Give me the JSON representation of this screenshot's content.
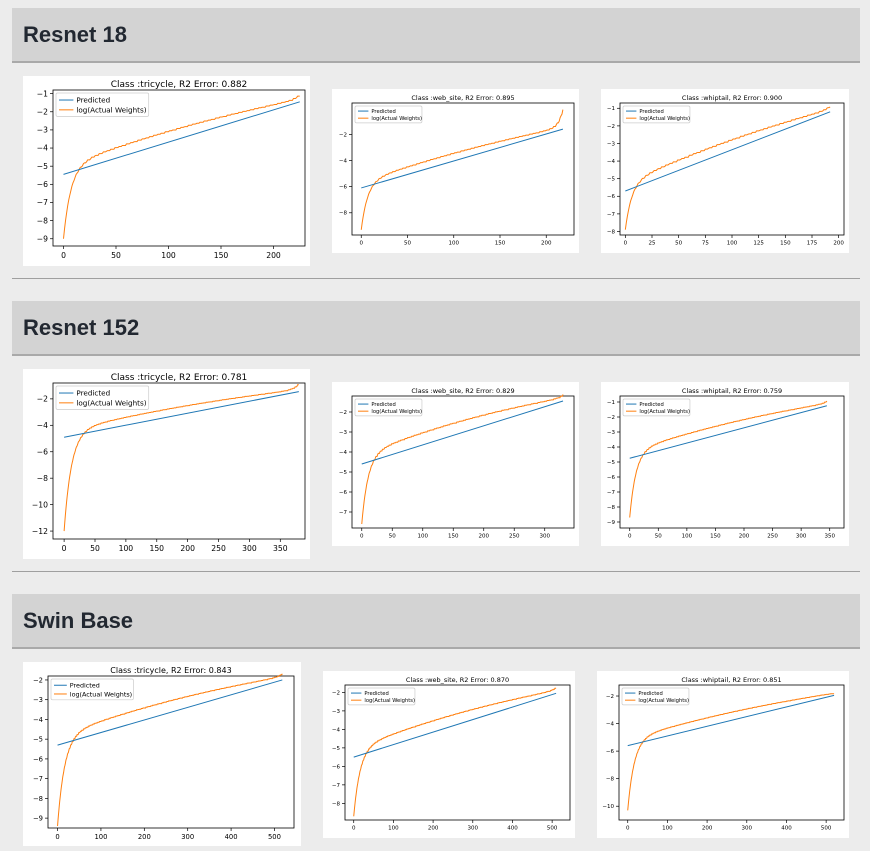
{
  "sections": [
    {
      "title": "Resnet 18"
    },
    {
      "title": "Resnet 152"
    },
    {
      "title": "Swin Base"
    }
  ],
  "colors": {
    "predicted": "#1f77b4",
    "actual": "#ff7f0e",
    "header_bg": "#d3d3d3",
    "page_bg": "#ececec"
  },
  "chart_data": [
    {
      "type": "line",
      "section": "Resnet 18",
      "title": "Class :tricycle, R2 Error: 0.882",
      "xticks": [
        0,
        50,
        100,
        150,
        200
      ],
      "yticks": [
        -1,
        -2,
        -3,
        -4,
        -5,
        -6,
        -7,
        -8,
        -9
      ],
      "xlim": [
        -10,
        230
      ],
      "ylim": [
        -9.4,
        -0.8
      ],
      "legend": "top-left",
      "n": 225,
      "predicted": [
        -5.45,
        -1.45
      ],
      "actual_end": -1.3,
      "actual_start": -9.0,
      "series": [
        {
          "name": "Predicted"
        },
        {
          "name": "log(Actual Weights)"
        }
      ]
    },
    {
      "type": "line",
      "section": "Resnet 18",
      "title": "Class :web_site, R2 Error: 0.895",
      "xticks": [
        0,
        50,
        100,
        150,
        200
      ],
      "yticks": [
        -2,
        -4,
        -6,
        -8
      ],
      "xlim": [
        -10,
        230
      ],
      "ylim": [
        -9.7,
        0.4
      ],
      "legend": "top-left",
      "n": 218,
      "predicted": [
        -6.1,
        -1.6
      ],
      "actual_end": -0.3,
      "actual_start": -9.3,
      "series": [
        {
          "name": "Predicted"
        },
        {
          "name": "log(Actual Weights)"
        }
      ]
    },
    {
      "type": "line",
      "section": "Resnet 18",
      "title": "Class :whiptail, R2 Error: 0.900",
      "xticks": [
        0,
        25,
        50,
        75,
        100,
        125,
        150,
        175,
        200
      ],
      "yticks": [
        -1,
        -2,
        -3,
        -4,
        -5,
        -6,
        -7,
        -8
      ],
      "xlim": [
        -5,
        205
      ],
      "ylim": [
        -8.2,
        -0.7
      ],
      "legend": "top-left",
      "n": 192,
      "predicted": [
        -5.7,
        -1.2
      ],
      "actual_end": -1.1,
      "actual_start": -7.9,
      "series": [
        {
          "name": "Predicted"
        },
        {
          "name": "log(Actual Weights)"
        }
      ]
    },
    {
      "type": "line",
      "section": "Resnet 152",
      "title": "Class :tricycle, R2 Error: 0.781",
      "xticks": [
        0,
        50,
        100,
        150,
        200,
        250,
        300,
        350
      ],
      "yticks": [
        -2,
        -4,
        -6,
        -8,
        -10,
        -12
      ],
      "xlim": [
        -18,
        390
      ],
      "ylim": [
        -12.6,
        -0.8
      ],
      "legend": "top-left",
      "n": 380,
      "predicted": [
        -4.9,
        -1.45
      ],
      "actual_end": -1.1,
      "actual_start": -12.0,
      "series": [
        {
          "name": "Predicted"
        },
        {
          "name": "log(Actual Weights)"
        }
      ]
    },
    {
      "type": "line",
      "section": "Resnet 152",
      "title": "Class :web_site, R2 Error: 0.829",
      "xticks": [
        0,
        50,
        100,
        150,
        200,
        250,
        300
      ],
      "yticks": [
        -2,
        -3,
        -4,
        -5,
        -6,
        -7
      ],
      "xlim": [
        -16,
        348
      ],
      "ylim": [
        -7.8,
        -1.2
      ],
      "legend": "top-left",
      "n": 330,
      "predicted": [
        -4.6,
        -1.45
      ],
      "actual_end": -1.4,
      "actual_start": -7.6,
      "series": [
        {
          "name": "Predicted"
        },
        {
          "name": "log(Actual Weights)"
        }
      ]
    },
    {
      "type": "line",
      "section": "Resnet 152",
      "title": "Class :whiptail, R2 Error: 0.759",
      "xticks": [
        0,
        50,
        100,
        150,
        200,
        250,
        300,
        350
      ],
      "yticks": [
        -1,
        -2,
        -3,
        -4,
        -5,
        -6,
        -7,
        -8,
        -9
      ],
      "xlim": [
        -17,
        375
      ],
      "ylim": [
        -9.4,
        -0.6
      ],
      "legend": "top-left",
      "n": 345,
      "predicted": [
        -4.75,
        -1.25
      ],
      "actual_end": -1.2,
      "actual_start": -8.7,
      "series": [
        {
          "name": "Predicted"
        },
        {
          "name": "log(Actual Weights)"
        }
      ]
    },
    {
      "type": "line",
      "section": "Swin Base",
      "title": "Class :tricycle, R2 Error: 0.843",
      "xticks": [
        0,
        100,
        200,
        300,
        400,
        500
      ],
      "yticks": [
        -2,
        -3,
        -4,
        -5,
        -6,
        -7,
        -8,
        -9
      ],
      "xlim": [
        -22,
        545
      ],
      "ylim": [
        -9.5,
        -1.8
      ],
      "legend": "top-left",
      "n": 518,
      "predicted": [
        -5.3,
        -2.0
      ],
      "actual_end": -1.95,
      "actual_start": -9.4,
      "series": [
        {
          "name": "Predicted"
        },
        {
          "name": "log(Actual Weights)"
        }
      ]
    },
    {
      "type": "line",
      "section": "Swin Base",
      "title": "Class :web_site, R2 Error: 0.870",
      "xticks": [
        0,
        100,
        200,
        300,
        400,
        500
      ],
      "yticks": [
        -2,
        -3,
        -4,
        -5,
        -6,
        -7,
        -8
      ],
      "xlim": [
        -22,
        545
      ],
      "ylim": [
        -8.9,
        -1.6
      ],
      "legend": "top-left",
      "n": 510,
      "predicted": [
        -5.5,
        -2.05
      ],
      "actual_end": -2.0,
      "actual_start": -8.7,
      "series": [
        {
          "name": "Predicted"
        },
        {
          "name": "log(Actual Weights)"
        }
      ]
    },
    {
      "type": "line",
      "section": "Swin Base",
      "title": "Class :whiptail, R2 Error: 0.851",
      "xticks": [
        0,
        100,
        200,
        300,
        400,
        500
      ],
      "yticks": [
        -2,
        -4,
        -6,
        -8,
        -10
      ],
      "xlim": [
        -22,
        545
      ],
      "ylim": [
        -11.0,
        -1.2
      ],
      "legend": "top-left",
      "n": 520,
      "predicted": [
        -5.6,
        -1.95
      ],
      "actual_end": -2.1,
      "actual_start": -10.3,
      "series": [
        {
          "name": "Predicted"
        },
        {
          "name": "log(Actual Weights)"
        }
      ]
    }
  ]
}
